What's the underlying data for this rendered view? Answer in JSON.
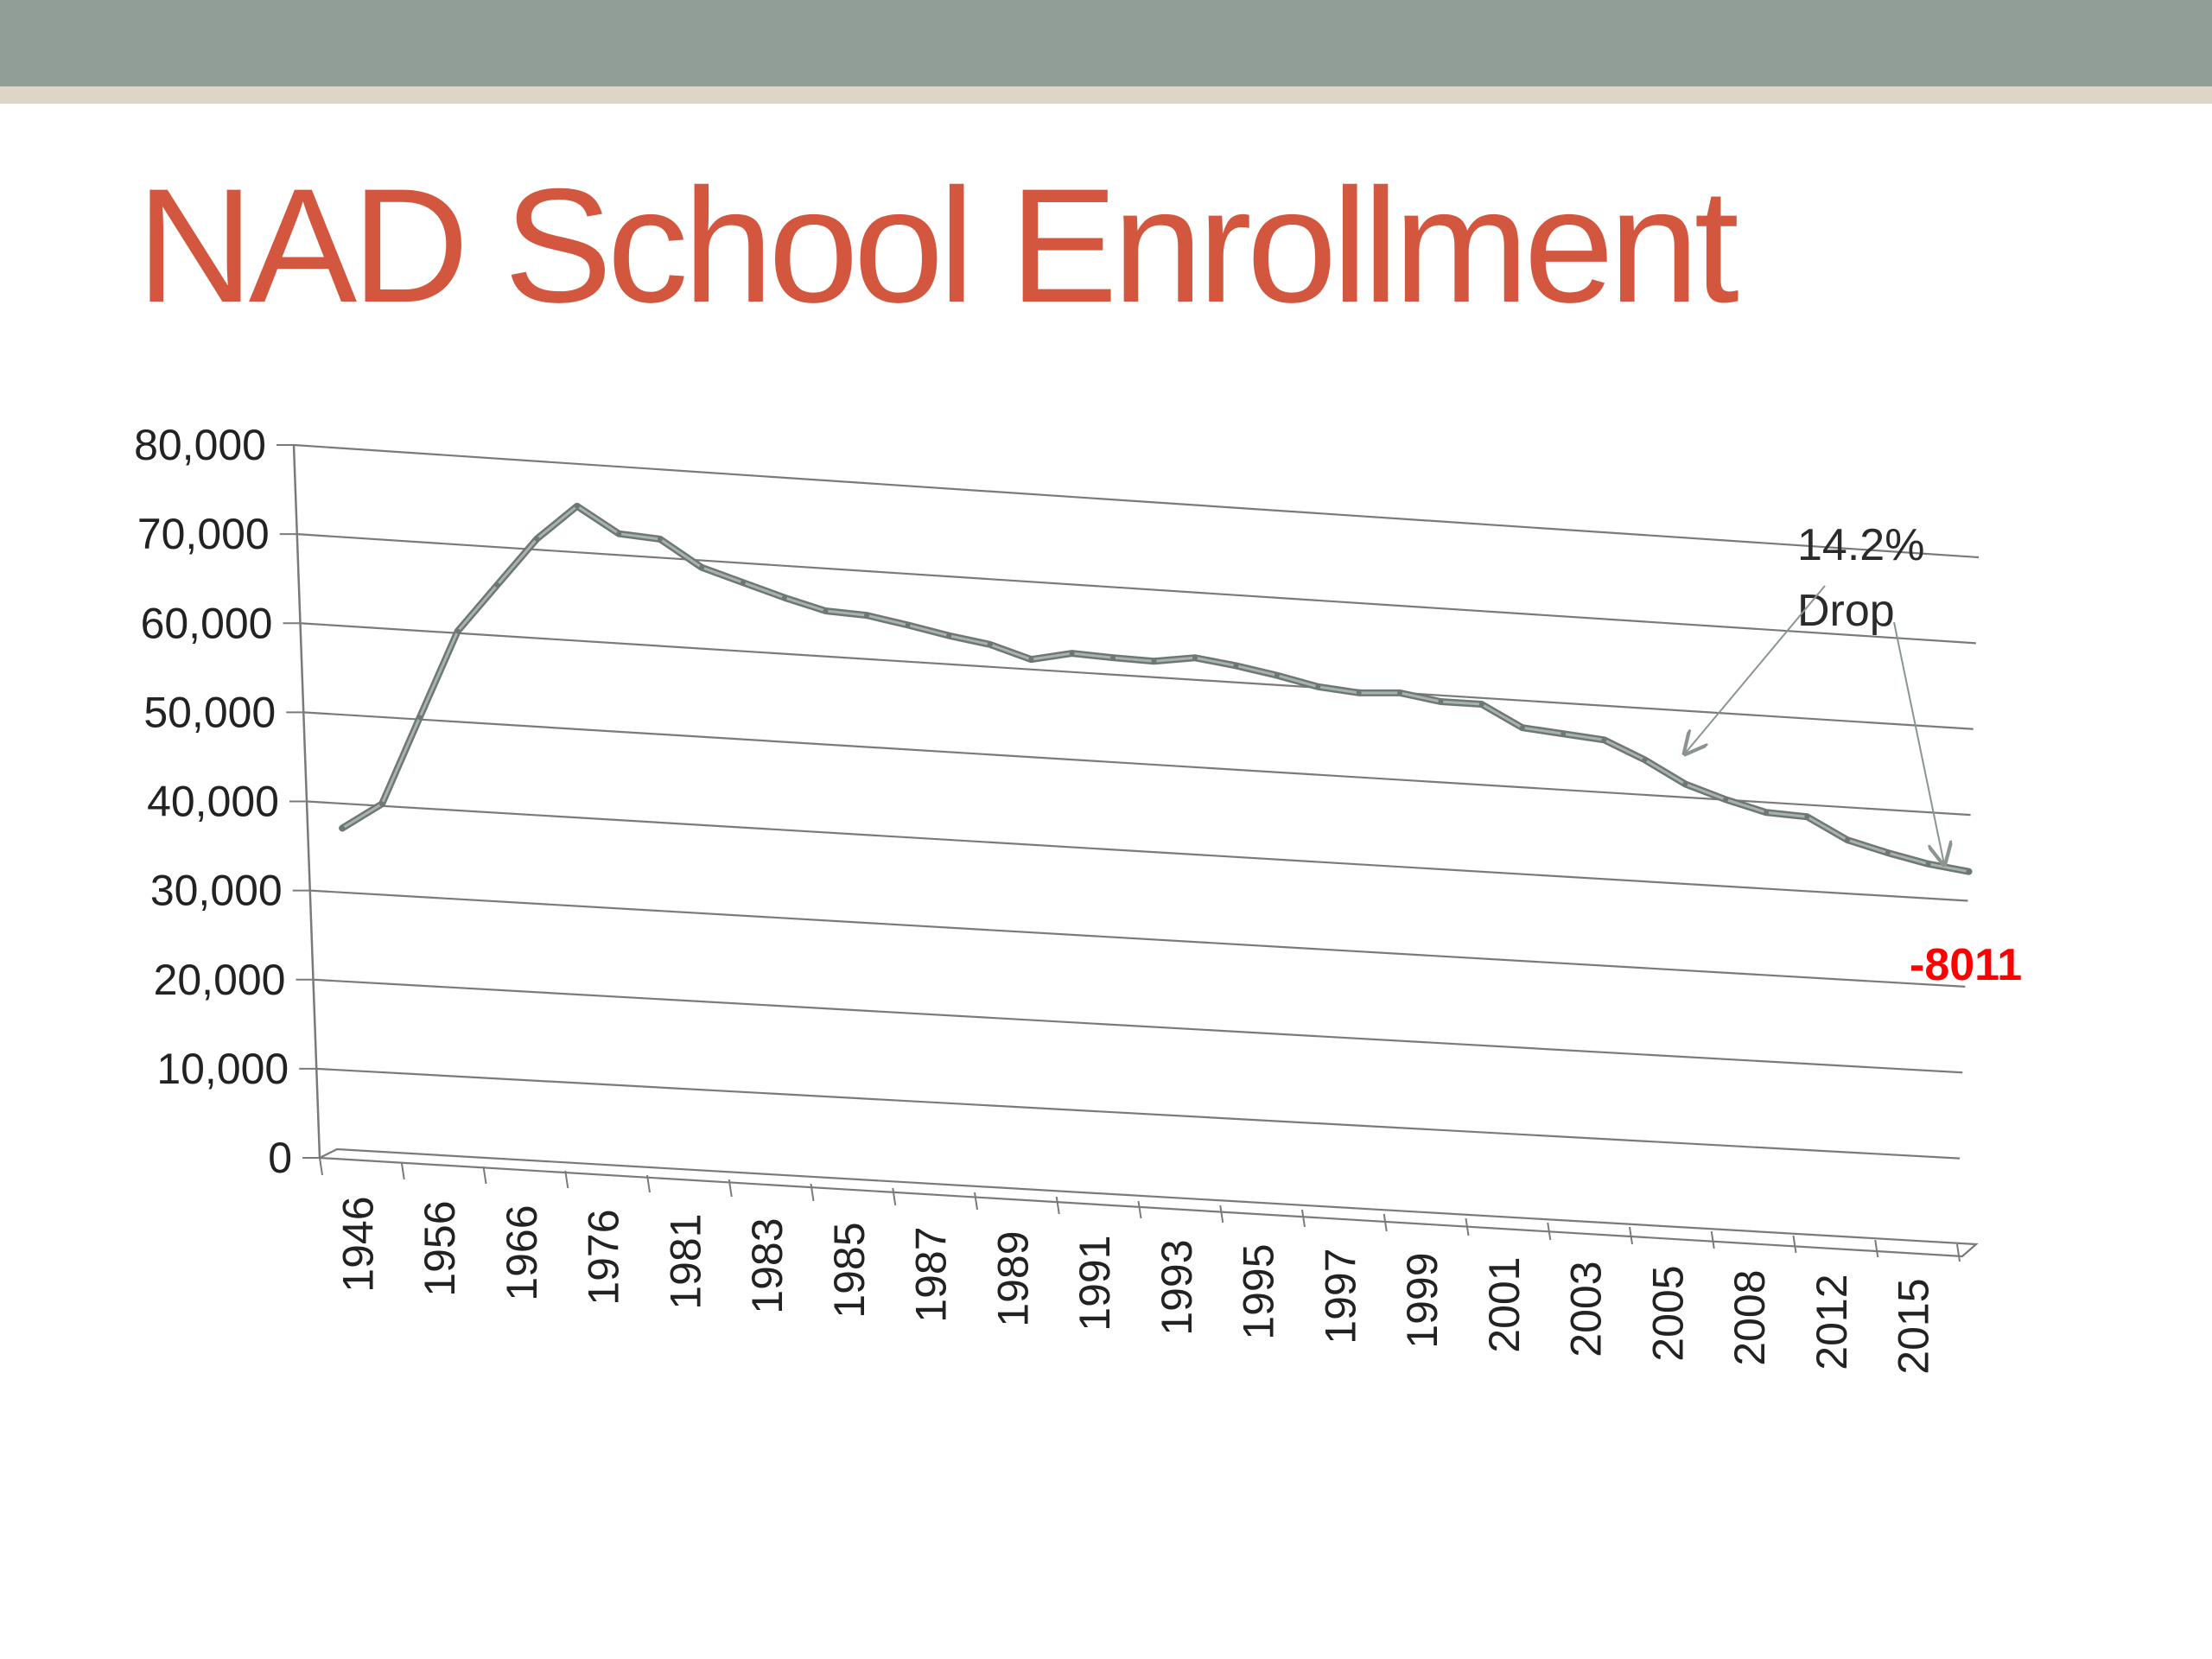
{
  "slide": {
    "title": "NAD School Enrollment",
    "colors": {
      "title": "#d3563f",
      "band": "#919e97",
      "stripe": "#ddd5c5",
      "line": "#7b8580",
      "grid": "#7a7a7a",
      "delta": "#ff0000"
    }
  },
  "chart_data": {
    "type": "line",
    "style": "3d-perspective",
    "title": "",
    "xlabel": "",
    "ylabel": "",
    "ylim": [
      0,
      80000
    ],
    "y_ticks": [
      "0",
      "10,000",
      "20,000",
      "30,000",
      "40,000",
      "50,000",
      "60,000",
      "70,000",
      "80,000"
    ],
    "grid": true,
    "x_tick_labels": [
      "1946",
      "1956",
      "1966",
      "1976",
      "1981",
      "1983",
      "1985",
      "1987",
      "1989",
      "1991",
      "1993",
      "1995",
      "1997",
      "1999",
      "2001",
      "2003",
      "2005",
      "2008",
      "2012",
      "2015"
    ],
    "series": [
      {
        "name": "",
        "color": "#7b8580",
        "values": [
          37000,
          40000,
          50000,
          60000,
          65500,
          71000,
          75000,
          72200,
          71900,
          69000,
          67600,
          66200,
          65000,
          64800,
          64000,
          63100,
          62400,
          61000,
          62000,
          61800,
          61700,
          62400,
          61800,
          61000,
          60000,
          59600,
          59900,
          59200,
          59200,
          56800,
          56400,
          56000,
          54000,
          51500,
          50000,
          48800,
          48600,
          46200,
          45000,
          44000,
          43400
        ]
      }
    ],
    "annotations": [
      {
        "text_line1": "14.2%",
        "text_line2": "Drop"
      },
      {
        "text": "-8011"
      }
    ]
  }
}
